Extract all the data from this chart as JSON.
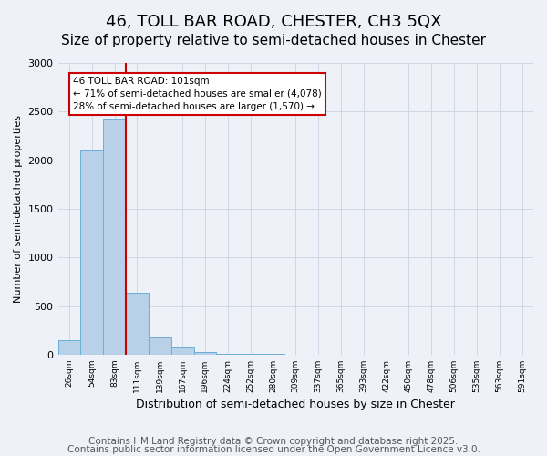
{
  "title": "46, TOLL BAR ROAD, CHESTER, CH3 5QX",
  "subtitle": "Size of property relative to semi-detached houses in Chester",
  "xlabel": "Distribution of semi-detached houses by size in Chester",
  "ylabel": "Number of semi-detached properties",
  "bin_labels": [
    "26sqm",
    "54sqm",
    "83sqm",
    "111sqm",
    "139sqm",
    "167sqm",
    "196sqm",
    "224sqm",
    "252sqm",
    "280sqm",
    "309sqm",
    "337sqm",
    "365sqm",
    "393sqm",
    "422sqm",
    "450sqm",
    "478sqm",
    "506sqm",
    "535sqm",
    "563sqm",
    "591sqm"
  ],
  "bar_values": [
    150,
    2100,
    2420,
    640,
    175,
    75,
    25,
    10,
    5,
    3,
    2,
    1,
    1,
    0,
    0,
    0,
    0,
    0,
    0,
    0,
    0
  ],
  "bar_color": "#b8d0e8",
  "bar_edge_color": "#6aaed6",
  "vline_bin_index": 2,
  "property_value": 101,
  "annotation_title": "46 TOLL BAR ROAD: 101sqm",
  "annotation_line1": "← 71% of semi-detached houses are smaller (4,078)",
  "annotation_line2": "28% of semi-detached houses are larger (1,570) →",
  "annotation_box_color": "#ffffff",
  "annotation_box_edge": "#cc0000",
  "vline_color": "#cc0000",
  "ylim": [
    0,
    3000
  ],
  "yticks": [
    0,
    500,
    1000,
    1500,
    2000,
    2500,
    3000
  ],
  "grid_color": "#d0d8e8",
  "bg_color": "#eef2f8",
  "footer_line1": "Contains HM Land Registry data © Crown copyright and database right 2025.",
  "footer_line2": "Contains public sector information licensed under the Open Government Licence v3.0.",
  "title_fontsize": 13,
  "subtitle_fontsize": 11,
  "footer_fontsize": 7.5
}
